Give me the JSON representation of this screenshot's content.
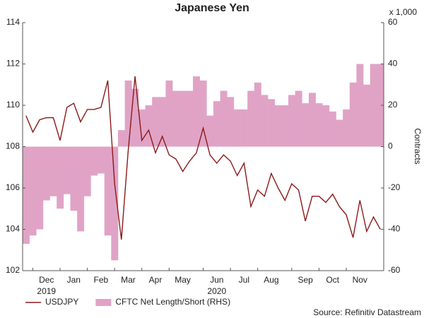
{
  "chart_data": {
    "type": "line",
    "title": "Japanese Yen",
    "y2_unit_label": "x 1,000",
    "y2_label": "Contracts",
    "source": "Source: Refinitiv Datastream",
    "categories": [
      null,
      null,
      null,
      "Dec",
      null,
      null,
      null,
      "Jan",
      null,
      null,
      null,
      "Feb",
      null,
      null,
      null,
      "Mar",
      null,
      null,
      null,
      "Apr",
      null,
      null,
      null,
      "May",
      null,
      null,
      null,
      null,
      "Jun",
      null,
      null,
      null,
      "Jul",
      null,
      null,
      null,
      "Aug",
      null,
      null,
      null,
      null,
      "Sep",
      null,
      null,
      null,
      "Oct",
      null,
      null,
      null,
      "Nov",
      null,
      null,
      null
    ],
    "category_years": [
      null,
      null,
      null,
      "2019",
      null,
      null,
      null,
      null,
      null,
      null,
      null,
      null,
      null,
      null,
      null,
      null,
      null,
      null,
      null,
      null,
      null,
      null,
      null,
      null,
      null,
      null,
      null,
      null,
      "2020",
      null,
      null,
      null,
      null,
      null,
      null,
      null,
      null,
      null,
      null,
      null,
      null,
      null,
      null,
      null,
      null,
      null,
      null,
      null,
      null,
      null,
      null,
      null,
      null
    ],
    "ylim": [
      102,
      114
    ],
    "yticks": [
      102,
      104,
      106,
      108,
      110,
      112,
      114
    ],
    "y2lim": [
      -60,
      60
    ],
    "y2ticks": [
      -60,
      -40,
      -20,
      0,
      20,
      40,
      60
    ],
    "legend": "bottom-left",
    "series": [
      {
        "name": "USDJPY",
        "color": "#8b1a1a",
        "kind": "line",
        "values": [
          109.5,
          108.7,
          109.3,
          109.4,
          109.4,
          108.3,
          109.9,
          110.1,
          109.2,
          109.8,
          109.8,
          109.9,
          111.2,
          106.2,
          103.5,
          107.8,
          111.4,
          108.3,
          108.8,
          107.7,
          108.5,
          107.6,
          107.4,
          106.8,
          107.3,
          107.7,
          108.9,
          107.6,
          107.2,
          107.6,
          107.3,
          106.6,
          107.2,
          105.1,
          105.9,
          105.6,
          106.7,
          106.0,
          105.4,
          106.2,
          105.9,
          104.4,
          105.6,
          105.6,
          105.3,
          105.7,
          105.1,
          104.7,
          103.6,
          105.4,
          103.9,
          104.6,
          104.0
        ]
      },
      {
        "name": "CFTC Net Length/Short (RHS)",
        "color": "#e0a3c6",
        "kind": "area",
        "axis": "y2",
        "values": [
          -47,
          -43,
          -40,
          -26,
          -24,
          -30,
          -23,
          -31,
          -41,
          -24,
          -14,
          -13,
          -43,
          -55,
          8,
          32,
          28,
          18,
          20,
          24,
          24,
          32,
          27,
          27,
          27,
          34,
          32,
          15,
          22,
          27,
          24,
          18,
          18,
          27,
          31,
          25,
          23,
          20,
          20,
          25,
          27,
          21,
          26,
          21,
          20,
          17,
          13,
          18,
          31,
          40,
          30,
          40,
          40
        ]
      }
    ]
  }
}
